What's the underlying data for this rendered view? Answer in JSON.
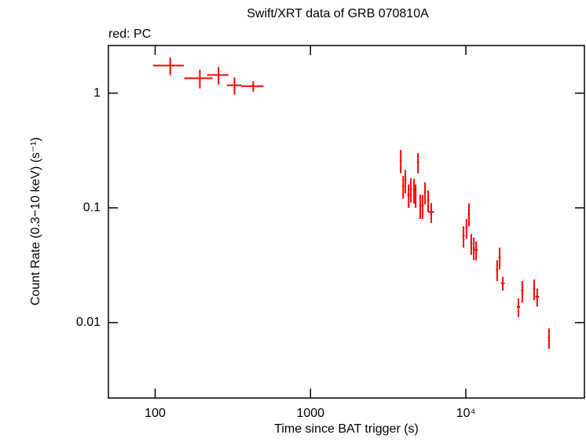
{
  "chart_data": {
    "type": "errorbar",
    "title": "Swift/XRT data of GRB 070810A",
    "annotation": "red: PC",
    "x_label": "Time since BAT trigger (s)",
    "y_label": "Count Rate (0.3−10 keV) (s⁻¹)",
    "xscale": "log",
    "yscale": "log",
    "xlim": [
      50,
      58000
    ],
    "ylim": [
      0.0022,
      2.6
    ],
    "xticks": [
      100,
      1000,
      {
        "value": 10000,
        "label": "10⁴"
      }
    ],
    "yticks": [
      1,
      0.1,
      0.01
    ],
    "series": [
      {
        "name": "PC",
        "color": "#ff0000",
        "x": [
          125,
          194,
          256,
          324,
          428,
          3810,
          3950,
          4080,
          4280,
          4430,
          4640,
          4750,
          4920,
          5090,
          5270,
          5460,
          5720,
          5990,
          9660,
          10100,
          10470,
          10840,
          11240,
          11640,
          15900,
          16500,
          17300,
          21800,
          23100,
          27500,
          28800,
          34300
        ],
        "xerr": [
          28,
          40,
          40,
          35,
          70,
          60,
          60,
          60,
          70,
          70,
          70,
          70,
          70,
          80,
          80,
          80,
          90,
          260,
          150,
          150,
          150,
          160,
          160,
          260,
          250,
          250,
          500,
          500,
          400,
          400,
          800,
          500
        ],
        "values": [
          1.74,
          1.35,
          1.44,
          1.17,
          1.15,
          0.26,
          0.155,
          0.174,
          0.13,
          0.146,
          0.144,
          0.13,
          0.25,
          0.105,
          0.105,
          0.137,
          0.117,
          0.092,
          0.057,
          0.067,
          0.089,
          0.049,
          0.045,
          0.043,
          0.029,
          0.037,
          0.022,
          0.0137,
          0.019,
          0.0197,
          0.0168,
          0.0074
        ],
        "yerr": [
          0.3,
          0.25,
          0.25,
          0.2,
          0.12,
          0.06,
          0.035,
          0.04,
          0.03,
          0.035,
          0.035,
          0.03,
          0.05,
          0.025,
          0.025,
          0.03,
          0.025,
          0.018,
          0.012,
          0.013,
          0.02,
          0.01,
          0.01,
          0.008,
          0.006,
          0.008,
          0.003,
          0.0025,
          0.004,
          0.004,
          0.003,
          0.0015
        ]
      }
    ]
  }
}
